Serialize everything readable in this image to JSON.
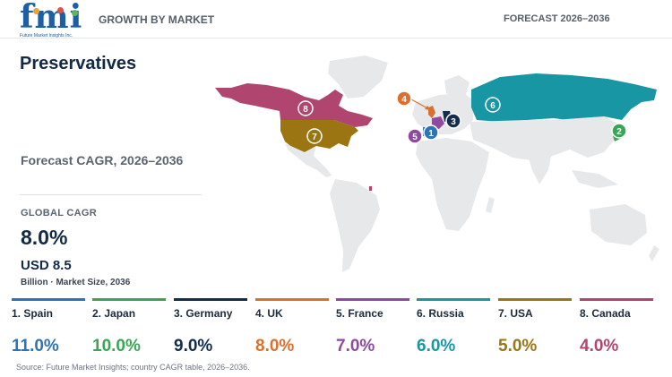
{
  "header": {
    "logo_text": "fmi",
    "logo_tagline": "Future Market Insights Inc.",
    "left_title": "GROWTH BY MARKET",
    "right_title": "FORECAST 2026–2036"
  },
  "colors": {
    "spain": "#2e74b5",
    "japan": "#3aa655",
    "germany": "#132d4f",
    "uk": "#d9702f",
    "france": "#8e4aa0",
    "russia": "#1896a3",
    "usa": "#9a7512",
    "canada": "#b04570",
    "land": "#e6e8ea"
  },
  "main": {
    "title": "Preservatives",
    "forecast_label": "Forecast CAGR, 2026–2036",
    "global_label": "GLOBAL CAGR",
    "global_value": "8.0%",
    "market_value": "USD 8.5",
    "market_label": "Billion · Market Size, 2036"
  },
  "map": {
    "markers": [
      {
        "num": "1",
        "country": "Spain"
      },
      {
        "num": "2",
        "country": "Japan"
      },
      {
        "num": "3",
        "country": "Germany"
      },
      {
        "num": "4",
        "country": "UK"
      },
      {
        "num": "5",
        "country": "France"
      },
      {
        "num": "6",
        "country": "Russia"
      },
      {
        "num": "7",
        "country": "USA"
      },
      {
        "num": "8",
        "country": "Canada"
      }
    ]
  },
  "countries": [
    {
      "label": "1. Spain",
      "value": "11.0%"
    },
    {
      "label": "2. Japan",
      "value": "10.0%"
    },
    {
      "label": "3. Germany",
      "value": "9.0%"
    },
    {
      "label": "4. UK",
      "value": "8.0%"
    },
    {
      "label": "5. France",
      "value": "7.0%"
    },
    {
      "label": "6. Russia",
      "value": "6.0%"
    },
    {
      "label": "7. USA",
      "value": "5.0%"
    },
    {
      "label": "8. Canada",
      "value": "4.0%"
    }
  ],
  "footer": {
    "source": "Source: Future Market Insights; country CAGR table, 2026–2036."
  }
}
